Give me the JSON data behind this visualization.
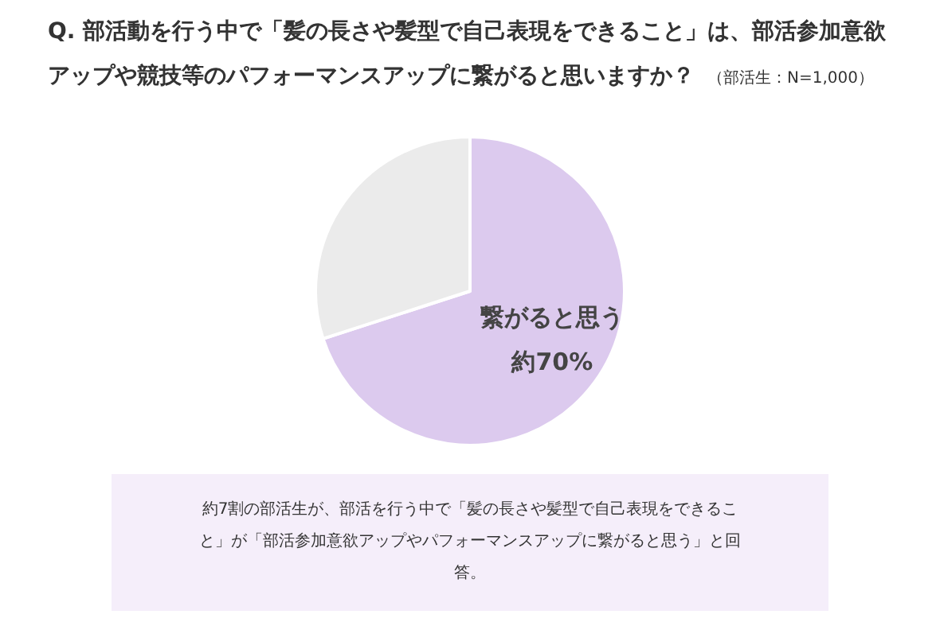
{
  "chart_data": {
    "type": "pie",
    "title": "Q. 部活動を行う中で「髪の長さや髪型で自己表現をできること」は、部活参加意欲アップや競技等のパフォーマンスアップに繋がると思いますか？",
    "subtitle": "（部活生：N=1,000）",
    "categories": [
      "繋がると思う",
      null
    ],
    "values": [
      70,
      30
    ],
    "colors": [
      "#dccaee",
      "#ebebeb"
    ],
    "value_labels": [
      "約70%",
      null
    ],
    "annotations": [
      "約7割の部活生が、部活を行う中で「髪の長さや髪型で自己表現をできること」が「部活参加意欲アップやパフォーマンスアップに繋がると思う」と回答。"
    ]
  }
}
